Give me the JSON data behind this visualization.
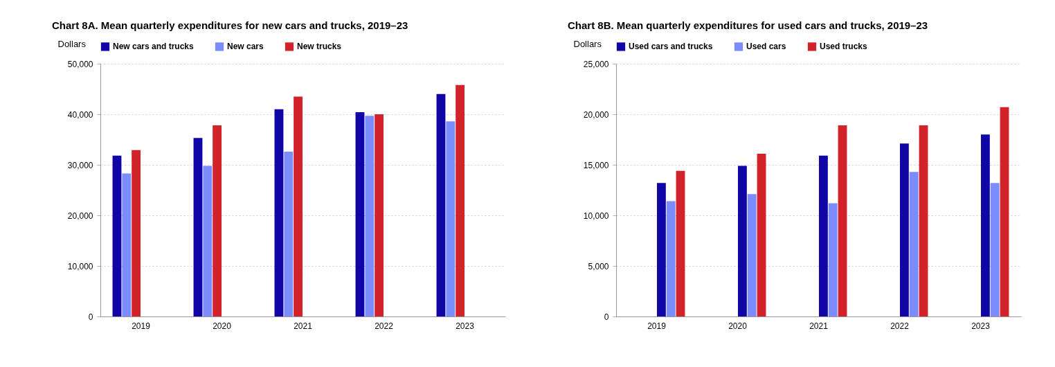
{
  "chart_data": [
    {
      "type": "bar",
      "title": "Chart 8A. Mean quarterly expenditures for new cars and trucks, 2019–23",
      "ylabel": "Dollars",
      "categories": [
        "2019",
        "2020",
        "2021",
        "2022",
        "2023"
      ],
      "series": [
        {
          "name": "New cars and trucks",
          "color": "#1005a5",
          "values": [
            31800,
            35300,
            41000,
            40400,
            44000
          ]
        },
        {
          "name": "New cars",
          "color": "#7b8cff",
          "values": [
            28300,
            29800,
            32600,
            39700,
            38600
          ]
        },
        {
          "name": "New trucks",
          "color": "#d2232a",
          "values": [
            32900,
            37800,
            43500,
            40000,
            45800
          ]
        }
      ],
      "ylim": [
        0,
        50000
      ],
      "yticks": [
        0,
        {
          "value": 10000,
          "label": "10,000"
        },
        {
          "value": 20000,
          "label": "20,000"
        },
        {
          "value": 30000,
          "label": "30,000"
        },
        {
          "value": 40000,
          "label": "40,000"
        },
        {
          "value": 50000,
          "label": "50,000"
        }
      ],
      "grid": "y",
      "legend": "top"
    },
    {
      "type": "bar",
      "title": "Chart 8B. Mean quarterly expenditures for used cars and trucks, 2019–23",
      "ylabel": "Dollars",
      "categories": [
        "2019",
        "2020",
        "2021",
        "2022",
        "2023"
      ],
      "series": [
        {
          "name": "Used cars and trucks",
          "color": "#1005a5",
          "values": [
            13200,
            14900,
            15900,
            17100,
            18000
          ]
        },
        {
          "name": "Used cars",
          "color": "#7b8cff",
          "values": [
            11400,
            12100,
            11200,
            14300,
            13200
          ]
        },
        {
          "name": "Used trucks",
          "color": "#d2232a",
          "values": [
            14400,
            16100,
            18900,
            18900,
            20700
          ]
        }
      ],
      "ylim": [
        0,
        25000
      ],
      "yticks": [
        0,
        {
          "value": 5000,
          "label": "5,000"
        },
        {
          "value": 10000,
          "label": "10,000"
        },
        {
          "value": 15000,
          "label": "15,000"
        },
        {
          "value": 20000,
          "label": "20,000"
        },
        {
          "value": 25000,
          "label": "25,000"
        }
      ],
      "grid": "y",
      "legend": "top"
    }
  ]
}
